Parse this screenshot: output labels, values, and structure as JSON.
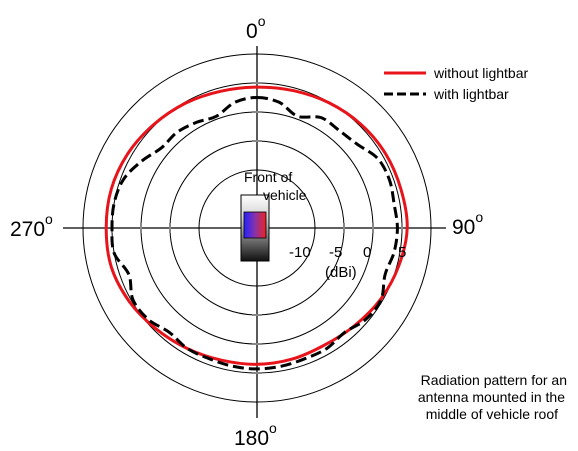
{
  "chart_data": {
    "type": "polar",
    "title": "",
    "radial_axis": {
      "unit_label": "(dBi)",
      "tick_labels": [
        "-10",
        "-5",
        "0",
        "5"
      ],
      "range": [
        -20,
        10
      ]
    },
    "angle_labels": [
      {
        "value": "0",
        "deg_symbol": "o",
        "angle": 0
      },
      {
        "value": "90",
        "deg_symbol": "o",
        "angle": 90
      },
      {
        "value": "180",
        "deg_symbol": "o",
        "angle": 180
      },
      {
        "value": "270",
        "deg_symbol": "o",
        "angle": 270
      }
    ],
    "legend_position": "top-right",
    "grid": true,
    "series": [
      {
        "name": "without lightbar",
        "color": "#e8141b",
        "style": "solid",
        "points": [
          {
            "angle": 0,
            "gain_dbi": 4.3
          },
          {
            "angle": 15,
            "gain_dbi": 4.5
          },
          {
            "angle": 30,
            "gain_dbi": 4.9
          },
          {
            "angle": 45,
            "gain_dbi": 5.3
          },
          {
            "angle": 60,
            "gain_dbi": 5.6
          },
          {
            "angle": 75,
            "gain_dbi": 5.7
          },
          {
            "angle": 90,
            "gain_dbi": 5.9
          },
          {
            "angle": 105,
            "gain_dbi": 5.3
          },
          {
            "angle": 120,
            "gain_dbi": 4.6
          },
          {
            "angle": 135,
            "gain_dbi": 3.8
          },
          {
            "angle": 150,
            "gain_dbi": 3.3
          },
          {
            "angle": 165,
            "gain_dbi": 3.4
          },
          {
            "angle": 180,
            "gain_dbi": 3.5
          },
          {
            "angle": 195,
            "gain_dbi": 3.6
          },
          {
            "angle": 210,
            "gain_dbi": 4.0
          },
          {
            "angle": 225,
            "gain_dbi": 4.6
          },
          {
            "angle": 240,
            "gain_dbi": 5.4
          },
          {
            "angle": 255,
            "gain_dbi": 6.0
          },
          {
            "angle": 270,
            "gain_dbi": 6.0
          },
          {
            "angle": 285,
            "gain_dbi": 6.0
          },
          {
            "angle": 300,
            "gain_dbi": 5.7
          },
          {
            "angle": 315,
            "gain_dbi": 5.2
          },
          {
            "angle": 330,
            "gain_dbi": 4.8
          },
          {
            "angle": 345,
            "gain_dbi": 4.4
          }
        ]
      },
      {
        "name": "with lightbar",
        "color": "#000000",
        "style": "dashed",
        "points": [
          {
            "angle": 0,
            "gain_dbi": 2.5
          },
          {
            "angle": 10,
            "gain_dbi": 2.0
          },
          {
            "angle": 20,
            "gain_dbi": 0.5
          },
          {
            "angle": 30,
            "gain_dbi": 2.0
          },
          {
            "angle": 40,
            "gain_dbi": 2.0
          },
          {
            "angle": 50,
            "gain_dbi": 2.5
          },
          {
            "angle": 60,
            "gain_dbi": 4.0
          },
          {
            "angle": 70,
            "gain_dbi": 4.3
          },
          {
            "angle": 80,
            "gain_dbi": 4.0
          },
          {
            "angle": 90,
            "gain_dbi": 4.2
          },
          {
            "angle": 100,
            "gain_dbi": 4.0
          },
          {
            "angle": 110,
            "gain_dbi": 3.5
          },
          {
            "angle": 120,
            "gain_dbi": 4.7
          },
          {
            "angle": 130,
            "gain_dbi": 4.5
          },
          {
            "angle": 140,
            "gain_dbi": 3.5
          },
          {
            "angle": 150,
            "gain_dbi": 4.0
          },
          {
            "angle": 160,
            "gain_dbi": 4.0
          },
          {
            "angle": 170,
            "gain_dbi": 4.2
          },
          {
            "angle": 180,
            "gain_dbi": 4.3
          },
          {
            "angle": 190,
            "gain_dbi": 4.2
          },
          {
            "angle": 200,
            "gain_dbi": 4.0
          },
          {
            "angle": 210,
            "gain_dbi": 4.0
          },
          {
            "angle": 220,
            "gain_dbi": 3.5
          },
          {
            "angle": 230,
            "gain_dbi": 4.5
          },
          {
            "angle": 240,
            "gain_dbi": 4.7
          },
          {
            "angle": 250,
            "gain_dbi": 3.5
          },
          {
            "angle": 260,
            "gain_dbi": 5.0
          },
          {
            "angle": 270,
            "gain_dbi": 5.0
          },
          {
            "angle": 280,
            "gain_dbi": 5.0
          },
          {
            "angle": 290,
            "gain_dbi": 4.5
          },
          {
            "angle": 300,
            "gain_dbi": 3.0
          },
          {
            "angle": 310,
            "gain_dbi": 1.5
          },
          {
            "angle": 320,
            "gain_dbi": 1.5
          },
          {
            "angle": 330,
            "gain_dbi": 1.0
          },
          {
            "angle": 340,
            "gain_dbi": 0.5
          },
          {
            "angle": 350,
            "gain_dbi": 2.0
          }
        ]
      }
    ],
    "annotations": {
      "vehicle_label": [
        "Front of",
        "vehicle"
      ],
      "caption": [
        "Radiation pattern for an",
        "antenna mounted in the",
        "middle of vehicle roof"
      ]
    }
  }
}
